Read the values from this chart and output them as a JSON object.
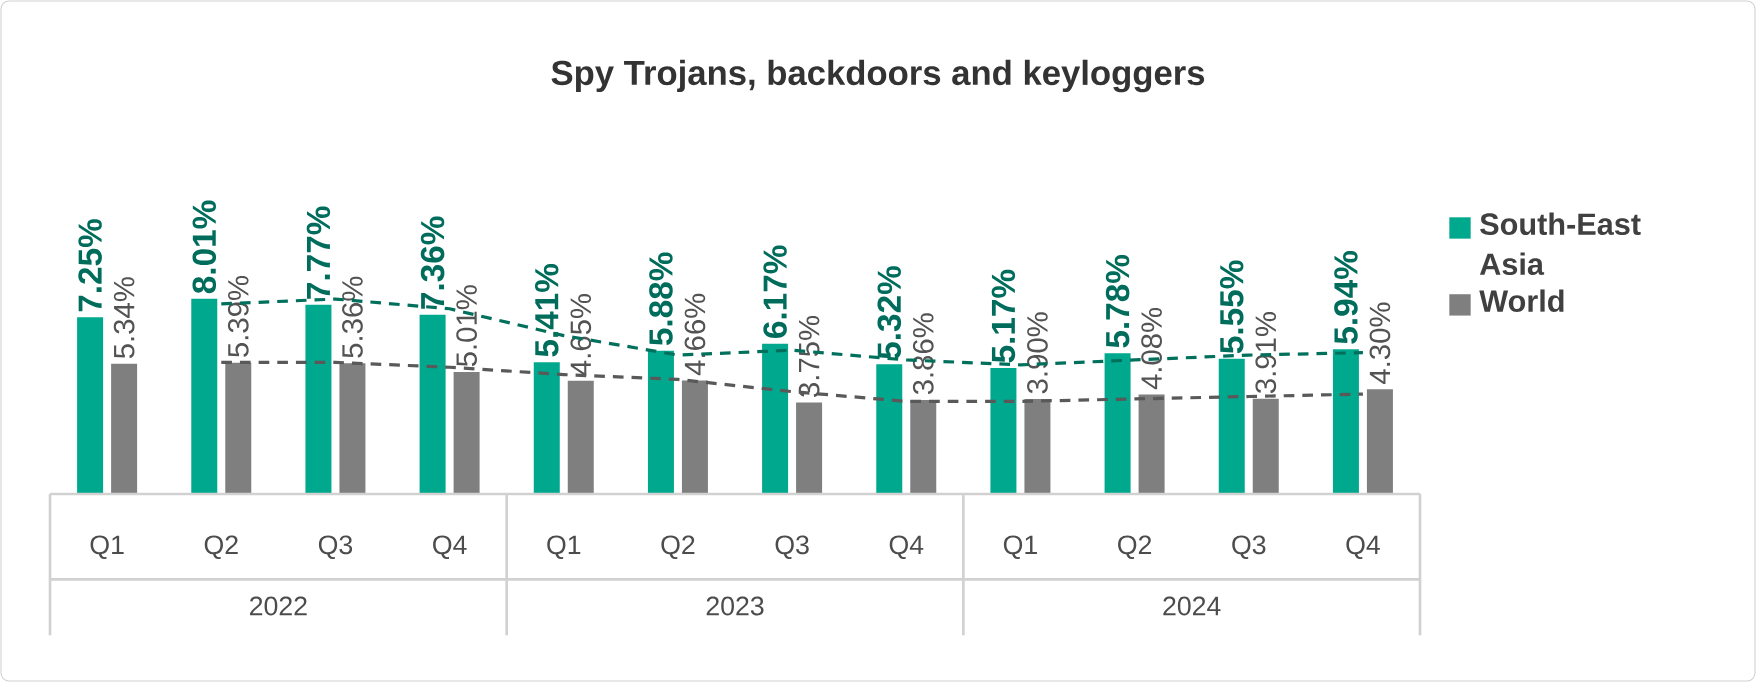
{
  "chart_data": {
    "type": "bar",
    "title": "Spy Trojans, backdoors and keyloggers",
    "categories": [
      "Q1",
      "Q2",
      "Q3",
      "Q4",
      "Q1",
      "Q2",
      "Q3",
      "Q4",
      "Q1",
      "Q2",
      "Q3",
      "Q4"
    ],
    "annotations": [
      "2022",
      "2023",
      "2024"
    ],
    "legend": "right",
    "series": [
      {
        "name": "South-East Asia",
        "color": "#00a88e",
        "values": [
          7.25,
          8.01,
          7.77,
          7.36,
          5.41,
          5.88,
          6.17,
          5.32,
          5.17,
          5.78,
          5.55,
          5.94
        ],
        "value_labels": [
          "7.25%",
          "8.01%",
          "7.77%",
          "7.36%",
          "5.41%",
          "5.88%",
          "6.17%",
          "5.32%",
          "5.17%",
          "5.78%",
          "5.55%",
          "5.94%"
        ]
      },
      {
        "name": "World",
        "color": "#7f7f7f",
        "values": [
          5.34,
          5.39,
          5.36,
          5.01,
          4.65,
          4.66,
          3.75,
          3.86,
          3.9,
          4.08,
          3.91,
          4.3
        ],
        "value_labels": [
          "5.34%",
          "5.39%",
          "5.36%",
          "5.01%",
          "4.65%",
          "4.66%",
          "3.75%",
          "3.86%",
          "3.90%",
          "4.08%",
          "3.91%",
          "4.30%"
        ]
      },
      {
        "type": "line",
        "color": "#00705c",
        "line_style": "dashed",
        "values": [
          null,
          7.8,
          8.0,
          7.6,
          6.5,
          5.7,
          5.9,
          5.5,
          5.3,
          5.5,
          5.7,
          5.8
        ]
      },
      {
        "type": "line",
        "color": "#595959",
        "line_style": "dashed",
        "values": [
          null,
          5.4,
          5.4,
          5.2,
          4.9,
          4.7,
          4.2,
          3.8,
          3.8,
          3.9,
          4.0,
          4.1
        ]
      }
    ]
  }
}
